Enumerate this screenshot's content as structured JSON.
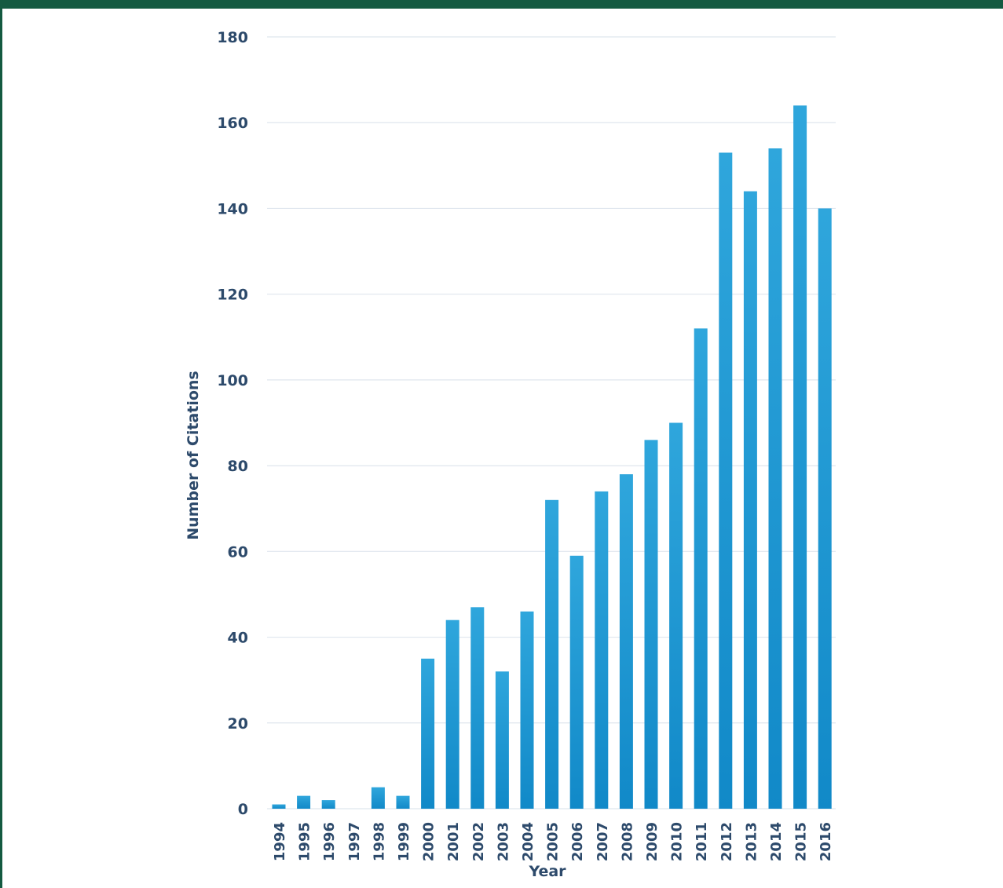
{
  "chart_data": {
    "type": "bar",
    "title": "",
    "xlabel": "Year",
    "ylabel": "Number of Citations",
    "categories": [
      "1994",
      "1995",
      "1996",
      "1997",
      "1998",
      "1999",
      "2000",
      "2001",
      "2002",
      "2003",
      "2004",
      "2005",
      "2006",
      "2007",
      "2008",
      "2009",
      "2010",
      "2011",
      "2012",
      "2013",
      "2014",
      "2015",
      "2016"
    ],
    "values": [
      1,
      3,
      2,
      0,
      5,
      3,
      35,
      44,
      47,
      32,
      46,
      72,
      59,
      74,
      78,
      86,
      90,
      112,
      153,
      144,
      154,
      164,
      140
    ],
    "ylim": [
      0,
      180
    ],
    "yticks": [
      "0",
      "20",
      "40",
      "60",
      "80",
      "100",
      "120",
      "140",
      "160",
      "180"
    ],
    "grid": "horizontal",
    "bar_color_top": "#2fa6dc",
    "bar_color_bottom": "#1189c8",
    "frame_color": "#145a41",
    "text_color": "#2d4a6b"
  }
}
